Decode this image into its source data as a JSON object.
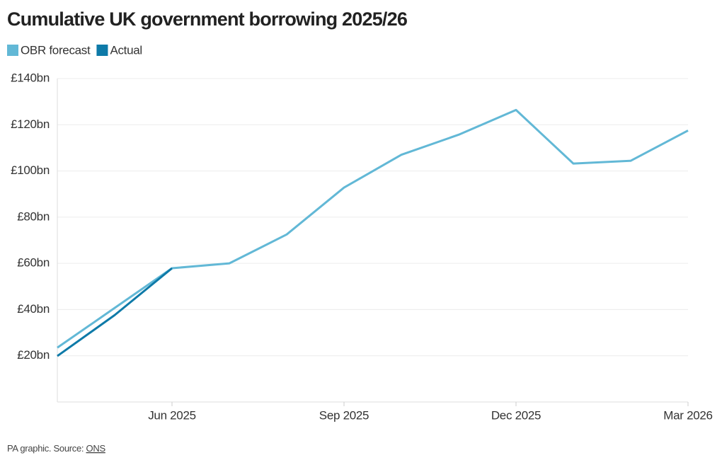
{
  "chart_data": {
    "type": "line",
    "title": "Cumulative UK government borrowing 2025/26",
    "categories": [
      null,
      null,
      "Jun 2025",
      null,
      null,
      "Sep 2025",
      null,
      null,
      "Dec 2025",
      null,
      null,
      "Mar 2026"
    ],
    "series": [
      {
        "name": "OBR forecast",
        "color": "#62b8d6",
        "values": [
          23.5,
          40.7,
          57.9,
          60,
          72.5,
          92.8,
          107,
          115.7,
          126.4,
          103.2,
          104.4,
          117.5
        ]
      },
      {
        "name": "Actual",
        "color": "#0e7aa8",
        "values": [
          19.9,
          37.6,
          57.9,
          null,
          null,
          null,
          null,
          null,
          null,
          null,
          null,
          null
        ]
      }
    ],
    "ylim": [
      0,
      140
    ],
    "yticks": [
      {
        "value": 20,
        "label": "£20bn"
      },
      {
        "value": 40,
        "label": "£40bn"
      },
      {
        "value": 60,
        "label": "£60bn"
      },
      {
        "value": 80,
        "label": "£80bn"
      },
      {
        "value": 100,
        "label": "£100bn"
      },
      {
        "value": 120,
        "label": "£120bn"
      },
      {
        "value": 140,
        "label": "£140bn"
      }
    ],
    "grid": true,
    "legend": "top-left",
    "source": {
      "prefix": "PA graphic. Source:",
      "link": "ONS"
    }
  }
}
